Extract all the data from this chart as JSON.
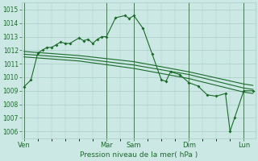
{
  "title": "Pression niveau de la mer( hPa )",
  "bg_color": "#cce8e4",
  "grid_color": "#aaccc8",
  "line_color": "#1a6b2a",
  "vline_color": "#4a7a5a",
  "ylim": [
    1005.5,
    1015.5
  ],
  "yticks": [
    1006,
    1007,
    1008,
    1009,
    1010,
    1011,
    1012,
    1013,
    1014,
    1015
  ],
  "xlim": [
    -1,
    101
  ],
  "day_labels": [
    "Ven",
    "Mar",
    "Sam",
    "Dim",
    "Lun"
  ],
  "day_positions": [
    0,
    36,
    48,
    72,
    96
  ],
  "series1_x": [
    0,
    3,
    6,
    8,
    10,
    12,
    14,
    16,
    18,
    20,
    24,
    26,
    28,
    30,
    32,
    34,
    36,
    40,
    44,
    46,
    48,
    52,
    56,
    60,
    62,
    64,
    68,
    72,
    76,
    80,
    84,
    88,
    90,
    92,
    96,
    100
  ],
  "series1_y": [
    1009.3,
    1009.8,
    1011.8,
    1012.0,
    1012.2,
    1012.2,
    1012.4,
    1012.6,
    1012.5,
    1012.5,
    1012.9,
    1012.7,
    1012.8,
    1012.5,
    1012.8,
    1013.0,
    1013.0,
    1014.4,
    1014.55,
    1014.35,
    1014.55,
    1013.6,
    1011.7,
    1009.8,
    1009.7,
    1010.4,
    1010.2,
    1009.6,
    1009.35,
    1008.7,
    1008.6,
    1008.8,
    1006.0,
    1007.0,
    1009.0,
    1009.0
  ],
  "series2_x": [
    0,
    24,
    48,
    72,
    96,
    100
  ],
  "series2_y": [
    1011.9,
    1011.6,
    1011.15,
    1010.4,
    1009.5,
    1009.4
  ],
  "series3_x": [
    0,
    24,
    48,
    72,
    96,
    100
  ],
  "series3_y": [
    1011.7,
    1011.4,
    1010.9,
    1010.2,
    1009.2,
    1009.1
  ],
  "series4_x": [
    0,
    24,
    48,
    72,
    96,
    100
  ],
  "series4_y": [
    1011.5,
    1011.2,
    1010.65,
    1009.9,
    1008.9,
    1008.8
  ],
  "title_fontsize": 6.5,
  "tick_fontsize": 5.5,
  "xlabel_fontsize": 6.0
}
